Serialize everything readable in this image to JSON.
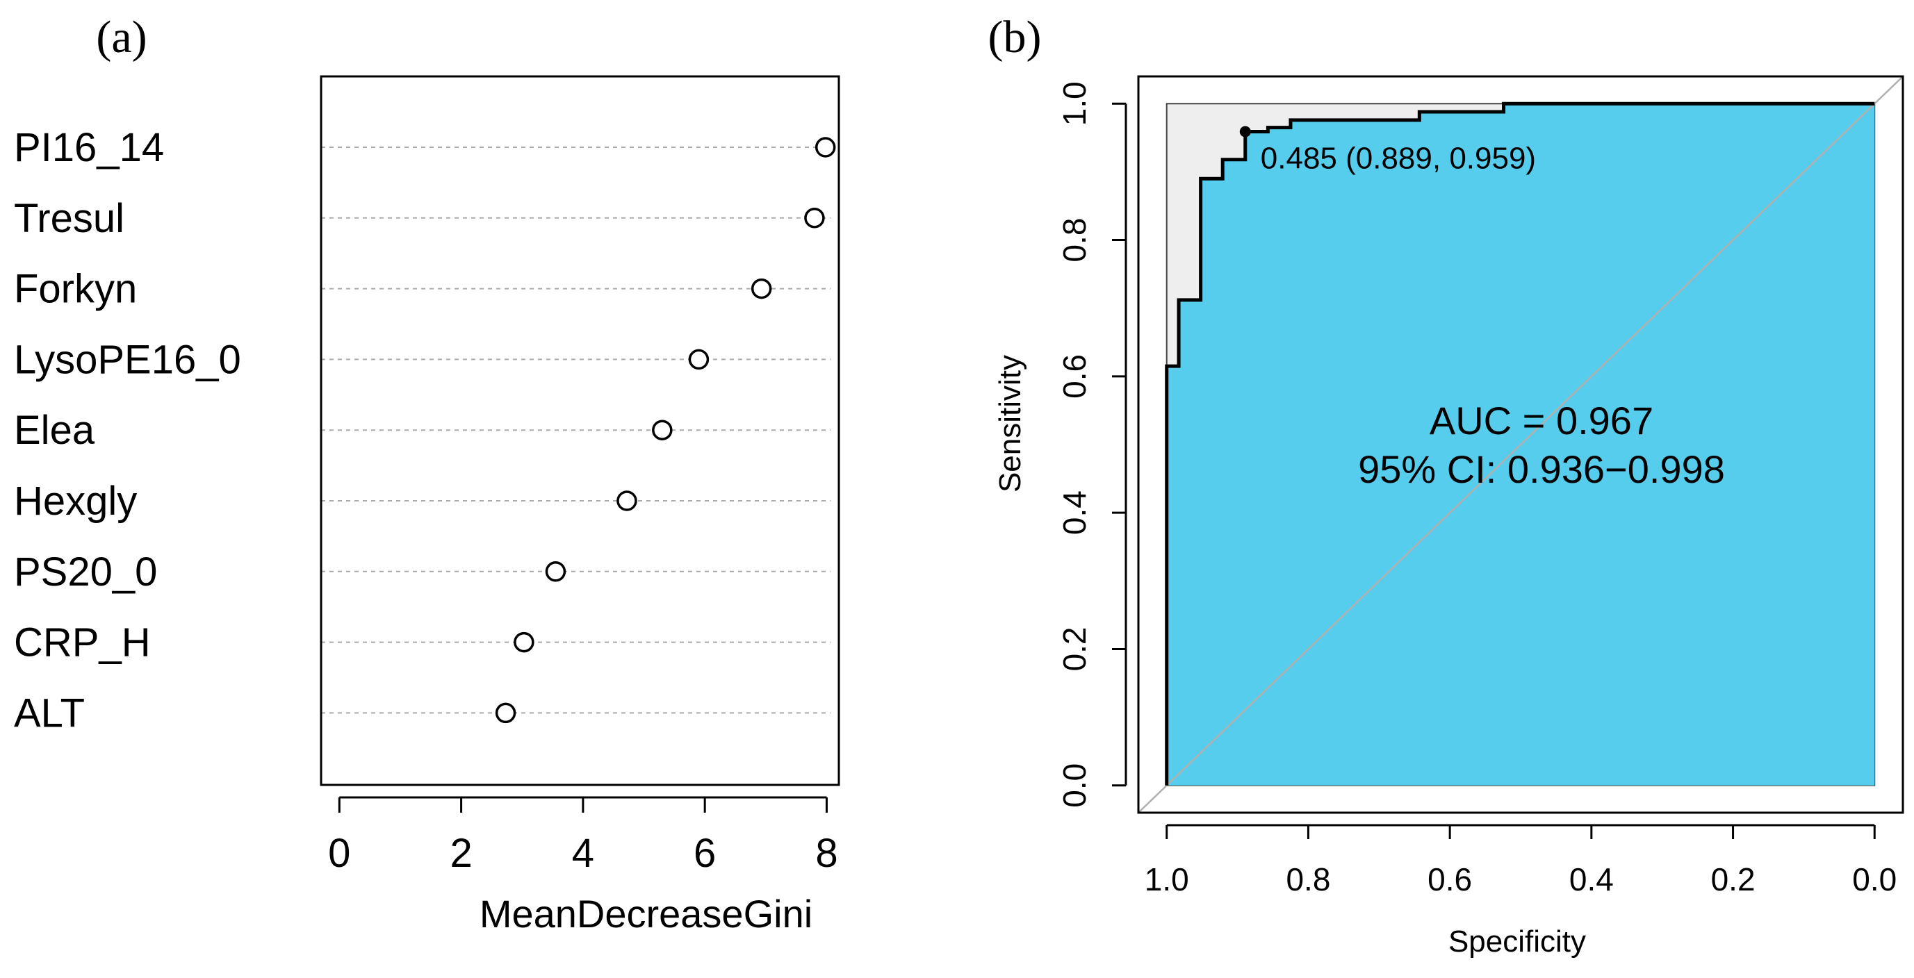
{
  "colors": {
    "axis": "#000000",
    "dotted_grid": "#aaaaaa",
    "roc_fill": "#57CDED",
    "roc_area_above": "#eeeeee",
    "diagonal": "#b0b0b0"
  },
  "chart_data": [
    {
      "panel_label": "(a)",
      "type": "scatter",
      "subtype": "dotchart",
      "categories": [
        "PI16_14",
        "Tresul",
        "Forkyn",
        "LysoPE16_0",
        "Elea",
        "Hexgly",
        "PS20_0",
        "CRP_H",
        "ALT"
      ],
      "values": [
        7.98,
        7.8,
        6.93,
        5.9,
        5.3,
        4.72,
        3.55,
        3.03,
        2.73
      ],
      "xlabel": "MeanDecreaseGini",
      "ylabel": "",
      "xlim": [
        -0.3,
        8.2
      ],
      "xticks": [
        0,
        2,
        4,
        6,
        8
      ],
      "xtick_labels": [
        "0",
        "2",
        "4",
        "6",
        "8"
      ],
      "grid": "dotted horizontal lines per category"
    },
    {
      "panel_label": "(b)",
      "type": "line",
      "subtype": "roc",
      "specificity": [
        1.0,
        1.0,
        0.983,
        0.983,
        0.952,
        0.952,
        0.921,
        0.921,
        0.889,
        0.889,
        0.857,
        0.857,
        0.825,
        0.825,
        0.643,
        0.643,
        0.524,
        0.524,
        0.0
      ],
      "sensitivity": [
        0.0,
        0.615,
        0.615,
        0.712,
        0.712,
        0.89,
        0.89,
        0.918,
        0.918,
        0.959,
        0.959,
        0.965,
        0.965,
        0.976,
        0.976,
        0.988,
        0.988,
        1.0,
        1.0
      ],
      "threshold_point": {
        "specificity": 0.889,
        "sensitivity": 0.959
      },
      "threshold_label": "0.485 (0.889, 0.959)",
      "auc_text": "AUC = 0.967",
      "ci_text": "95% CI: 0.936−0.998",
      "xlabel": "Specificity",
      "ylabel": "Sensitivity",
      "xlim": [
        1.04,
        -0.04
      ],
      "ylim": [
        -0.04,
        1.04
      ],
      "xticks": [
        1.0,
        0.8,
        0.6,
        0.4,
        0.2,
        0.0
      ],
      "xtick_labels": [
        "1.0",
        "0.8",
        "0.6",
        "0.4",
        "0.2",
        "0.0"
      ],
      "yticks": [
        0.0,
        0.2,
        0.4,
        0.6,
        0.8,
        1.0
      ],
      "ytick_labels": [
        "0.0",
        "0.2",
        "0.4",
        "0.6",
        "0.8",
        "1.0"
      ]
    }
  ]
}
